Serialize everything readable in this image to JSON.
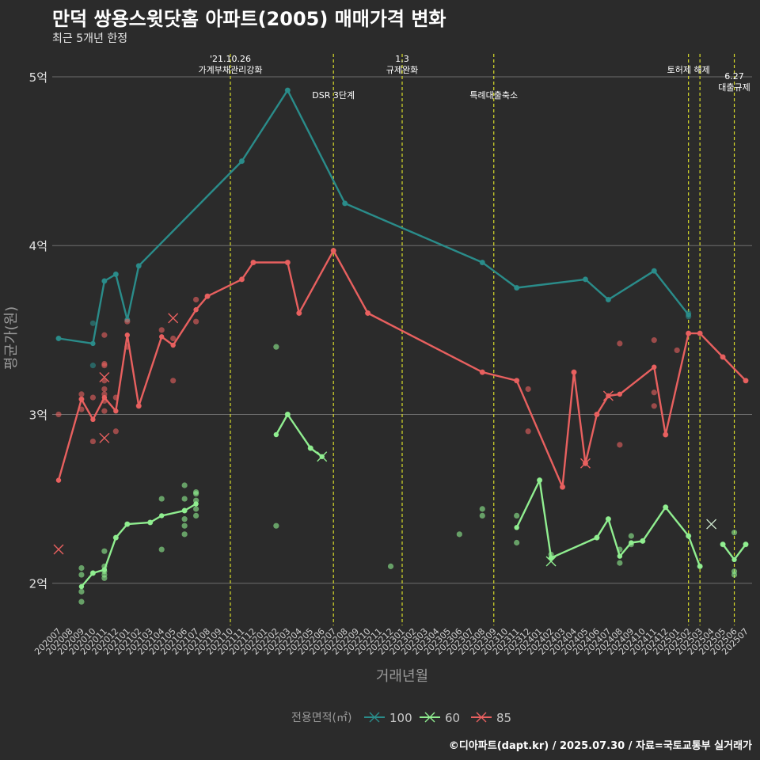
{
  "chart_data": {
    "type": "line",
    "title": "만덕 쌍용스윗닷홈 아파트(2005) 매매가격 변화",
    "subtitle": "최근 5개년 한정",
    "xlabel": "거래년월",
    "ylabel": "평균가(원)",
    "caption": "©디아파트(dapt.kr) / 2025.07.30 / 자료=국토교통부 실거래가",
    "legend_title": "전용면적(㎡)",
    "legend_position": "bottom",
    "grid": true,
    "ylim": [
      1.75,
      5.15
    ],
    "y_ticks": [
      {
        "value": 2,
        "label": "2억"
      },
      {
        "value": 3,
        "label": "3억"
      },
      {
        "value": 4,
        "label": "4억"
      },
      {
        "value": 5,
        "label": "5억"
      }
    ],
    "categories": [
      "202007",
      "202008",
      "202009",
      "202010",
      "202011",
      "202012",
      "202101",
      "202102",
      "202103",
      "202104",
      "202105",
      "202106",
      "202107",
      "202108",
      "202109",
      "202110",
      "202111",
      "202112",
      "202201",
      "202202",
      "202203",
      "202204",
      "202205",
      "202206",
      "202207",
      "202208",
      "202209",
      "202210",
      "202211",
      "202212",
      "202301",
      "202302",
      "202303",
      "202304",
      "202305",
      "202306",
      "202307",
      "202308",
      "202309",
      "202310",
      "202311",
      "202312",
      "202401",
      "202402",
      "202403",
      "202404",
      "202405",
      "202406",
      "202407",
      "202408",
      "202409",
      "202410",
      "202411",
      "202412",
      "202501",
      "202502",
      "202503",
      "202504",
      "202505",
      "202506",
      "202507"
    ],
    "events": [
      {
        "x": 15,
        "label": "'21.10.26\n가계부채관리강화",
        "row": 0
      },
      {
        "x": 24,
        "label": "DSR 3단계",
        "row": 1
      },
      {
        "x": 30,
        "label": "1.3\n규제완화",
        "row": 0
      },
      {
        "x": 38,
        "label": "특례대출축소",
        "row": 1
      },
      {
        "x": 55,
        "label": "토허제 해제",
        "row": 0
      },
      {
        "x": 56,
        "label": "",
        "row": 0
      },
      {
        "x": 59,
        "label": "6.27\n대출규제",
        "row": 2
      }
    ],
    "series": [
      {
        "name": "100",
        "color": "#2a8c8a",
        "line": [
          [
            0,
            3.45
          ],
          [
            3,
            3.42
          ],
          [
            4,
            3.79
          ],
          [
            5,
            3.83
          ],
          [
            6,
            3.56
          ],
          [
            7,
            3.88
          ],
          [
            16,
            4.5
          ],
          [
            20,
            4.92
          ],
          [
            25,
            4.25
          ],
          [
            37,
            3.9
          ],
          [
            40,
            3.75
          ],
          [
            46,
            3.8
          ],
          [
            48,
            3.68
          ],
          [
            52,
            3.85
          ],
          [
            55,
            3.59
          ]
        ],
        "points": [
          [
            0,
            3.45
          ],
          [
            3,
            3.54
          ],
          [
            3,
            3.29
          ],
          [
            4,
            3.79
          ],
          [
            5,
            3.83
          ],
          [
            6,
            3.56
          ],
          [
            7,
            3.88
          ],
          [
            16,
            4.5
          ],
          [
            20,
            4.92
          ],
          [
            25,
            4.25
          ],
          [
            37,
            3.9
          ],
          [
            40,
            3.75
          ],
          [
            46,
            3.8
          ],
          [
            48,
            3.68
          ],
          [
            52,
            3.85
          ],
          [
            55,
            3.6
          ],
          [
            55,
            3.58
          ]
        ],
        "crosses": []
      },
      {
        "name": "60",
        "color": "#90ee90",
        "line": [
          [
            2,
            1.98
          ],
          [
            3,
            2.06
          ],
          [
            4,
            2.08
          ],
          [
            5,
            2.27
          ],
          [
            6,
            2.35
          ],
          [
            8,
            2.36
          ],
          [
            9,
            2.4
          ],
          [
            11,
            2.43
          ],
          [
            12,
            2.47
          ]
        ],
        "line2": [
          [
            19,
            2.88
          ],
          [
            20,
            3.0
          ],
          [
            22,
            2.8
          ],
          [
            23,
            2.75
          ]
        ],
        "line3": [
          [
            40,
            2.33
          ],
          [
            42,
            2.61
          ],
          [
            43,
            2.15
          ],
          [
            47,
            2.27
          ],
          [
            48,
            2.38
          ],
          [
            49,
            2.16
          ],
          [
            50,
            2.24
          ],
          [
            51,
            2.25
          ],
          [
            53,
            2.45
          ],
          [
            55,
            2.28
          ],
          [
            56,
            2.1
          ]
        ],
        "line4": [
          [
            58,
            2.23
          ],
          [
            59,
            2.14
          ],
          [
            60,
            2.23
          ]
        ],
        "points": [
          [
            2,
            2.09
          ],
          [
            2,
            2.05
          ],
          [
            2,
            1.95
          ],
          [
            2,
            1.89
          ],
          [
            3,
            2.06
          ],
          [
            4,
            2.1
          ],
          [
            4,
            2.07
          ],
          [
            4,
            2.05
          ],
          [
            4,
            2.03
          ],
          [
            4,
            2.19
          ],
          [
            5,
            2.27
          ],
          [
            6,
            2.35
          ],
          [
            8,
            2.36
          ],
          [
            9,
            2.5
          ],
          [
            9,
            2.2
          ],
          [
            11,
            2.58
          ],
          [
            11,
            2.5
          ],
          [
            11,
            2.43
          ],
          [
            11,
            2.38
          ],
          [
            11,
            2.34
          ],
          [
            11,
            2.29
          ],
          [
            12,
            2.53
          ],
          [
            12,
            2.54
          ],
          [
            12,
            2.49
          ],
          [
            12,
            2.44
          ],
          [
            12,
            2.4
          ],
          [
            19,
            3.4
          ],
          [
            19,
            2.34
          ],
          [
            20,
            3.0
          ],
          [
            22,
            2.8
          ],
          [
            29,
            2.1
          ],
          [
            35,
            2.29
          ],
          [
            37,
            2.44
          ],
          [
            37,
            2.4
          ],
          [
            40,
            2.4
          ],
          [
            40,
            2.24
          ],
          [
            42,
            2.61
          ],
          [
            43,
            2.17
          ],
          [
            47,
            2.27
          ],
          [
            48,
            2.38
          ],
          [
            49,
            2.2
          ],
          [
            49,
            2.12
          ],
          [
            50,
            2.23
          ],
          [
            50,
            2.28
          ],
          [
            51,
            2.25
          ],
          [
            53,
            2.45
          ],
          [
            55,
            2.28
          ],
          [
            56,
            2.1
          ],
          [
            58,
            2.23
          ],
          [
            59,
            2.3
          ],
          [
            59,
            2.07
          ],
          [
            59,
            2.05
          ],
          [
            60,
            2.23
          ]
        ],
        "crosses": [
          [
            23,
            2.75
          ],
          [
            43,
            2.13
          ],
          [
            57,
            2.35
          ]
        ]
      },
      {
        "name": "85",
        "color": "#e8605f",
        "line": [
          [
            0,
            2.61
          ],
          [
            2,
            3.09
          ],
          [
            3,
            2.97
          ],
          [
            4,
            3.1
          ],
          [
            5,
            3.02
          ],
          [
            6,
            3.47
          ],
          [
            7,
            3.05
          ],
          [
            9,
            3.46
          ],
          [
            10,
            3.41
          ],
          [
            12,
            3.62
          ],
          [
            13,
            3.7
          ],
          [
            16,
            3.8
          ],
          [
            17,
            3.9
          ],
          [
            20,
            3.9
          ],
          [
            21,
            3.6
          ],
          [
            24,
            3.97
          ],
          [
            27,
            3.6
          ],
          [
            37,
            3.25
          ],
          [
            40,
            3.2
          ],
          [
            44,
            2.57
          ],
          [
            45,
            3.25
          ],
          [
            46,
            2.71
          ],
          [
            47,
            3.0
          ],
          [
            48,
            3.11
          ],
          [
            49,
            3.12
          ],
          [
            52,
            3.28
          ],
          [
            53,
            2.88
          ],
          [
            55,
            3.48
          ],
          [
            56,
            3.48
          ],
          [
            58,
            3.34
          ],
          [
            60,
            3.2
          ]
        ],
        "points": [
          [
            0,
            3.0
          ],
          [
            2,
            3.12
          ],
          [
            2,
            3.09
          ],
          [
            2,
            3.03
          ],
          [
            3,
            3.1
          ],
          [
            3,
            2.84
          ],
          [
            4,
            3.47
          ],
          [
            4,
            3.3
          ],
          [
            4,
            3.29
          ],
          [
            4,
            3.2
          ],
          [
            4,
            3.15
          ],
          [
            4,
            3.12
          ],
          [
            4,
            3.08
          ],
          [
            4,
            3.02
          ],
          [
            5,
            3.1
          ],
          [
            5,
            2.9
          ],
          [
            6,
            3.55
          ],
          [
            6,
            3.4
          ],
          [
            7,
            3.05
          ],
          [
            9,
            3.5
          ],
          [
            10,
            3.45
          ],
          [
            10,
            3.2
          ],
          [
            12,
            3.68
          ],
          [
            12,
            3.55
          ],
          [
            13,
            3.7
          ],
          [
            16,
            3.8
          ],
          [
            17,
            3.9
          ],
          [
            20,
            3.9
          ],
          [
            21,
            3.6
          ],
          [
            24,
            3.97
          ],
          [
            27,
            3.6
          ],
          [
            37,
            3.25
          ],
          [
            40,
            3.2
          ],
          [
            41,
            3.15
          ],
          [
            41,
            2.9
          ],
          [
            44,
            2.57
          ],
          [
            45,
            3.25
          ],
          [
            46,
            2.71
          ],
          [
            47,
            3.0
          ],
          [
            49,
            3.42
          ],
          [
            49,
            2.82
          ],
          [
            52,
            3.44
          ],
          [
            52,
            3.13
          ],
          [
            52,
            3.05
          ],
          [
            53,
            2.88
          ],
          [
            54,
            3.38
          ],
          [
            55,
            3.48
          ],
          [
            56,
            3.48
          ],
          [
            58,
            3.34
          ],
          [
            60,
            3.2
          ]
        ],
        "crosses": [
          [
            0,
            2.2
          ],
          [
            4,
            2.86
          ],
          [
            4,
            3.22
          ],
          [
            10,
            3.57
          ],
          [
            46,
            2.71
          ],
          [
            48,
            3.11
          ]
        ]
      }
    ]
  }
}
